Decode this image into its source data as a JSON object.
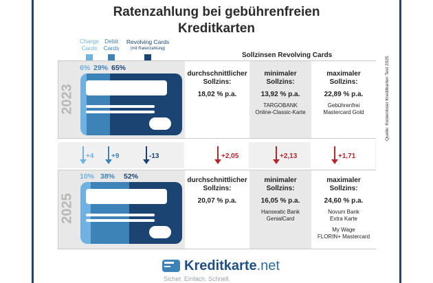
{
  "title_line1": "Ratenzahlung bei gebührenfreien",
  "title_line2": "Kreditkarten",
  "legend": {
    "charge": {
      "line1": "Charge",
      "line2": "Cards",
      "color": "#6fb1e0"
    },
    "debit": {
      "line1": "Debit",
      "line2": "Cards",
      "color": "#3e83b8"
    },
    "revolving": {
      "line1": "Revolving Cards",
      "line2": "(mit Ratenzahlung)",
      "color": "#1c4473"
    }
  },
  "section_head": "Sollzinsen Revolving Cards",
  "year2023": {
    "year": "2023",
    "pct_charge": "6%",
    "pct_debit": "29%",
    "pct_revolving": "65%",
    "cols": [
      {
        "h1": "durchschnittlicher",
        "h2": "Sollzins:",
        "v": "18,02 % p.a.",
        "n1": "",
        "n2": ""
      },
      {
        "h1": "minimaler",
        "h2": "Sollzins:",
        "v": "13,92 % p.a.",
        "n1": "TARGOBANK",
        "n2": "Online-Classic-Karte"
      },
      {
        "h1": "maximaler",
        "h2": "Sollzins:",
        "v": "22,89 % p.a.",
        "n1": "Gebührenfrei",
        "n2": "Mastercard Gold"
      }
    ]
  },
  "changes": {
    "charge": "+4",
    "debit": "+9",
    "revolving": "-13",
    "avg": "+2,05",
    "min": "+2,13",
    "max": "+1,71"
  },
  "year2025": {
    "year": "2025",
    "pct_charge": "10%",
    "pct_debit": "38%",
    "pct_revolving": "52%",
    "cols": [
      {
        "h1": "durchschnittlicher",
        "h2": "Sollzins:",
        "v": "20,07 % p.a.",
        "n1": "",
        "n2": ""
      },
      {
        "h1": "minimaler",
        "h2": "Sollzins:",
        "v": "16,05 % p.a.",
        "n1": "Hanseatic Bank",
        "n2": "GenialCard"
      },
      {
        "h1": "maximaler",
        "h2": "Sollzins:",
        "v": "24,60 % p.a.",
        "n1": "Novum Bank",
        "n2": "Extra Karte",
        "n3": "My Wage",
        "n4": "FLORIN+ Mastercard"
      }
    ]
  },
  "source": "Quelle: Kostenloser Kreditkarten Test 2025",
  "logo": {
    "part1": "Kreditkarte",
    "part2": ".net"
  },
  "slogan": "Sicher. Einfach. Schnell."
}
